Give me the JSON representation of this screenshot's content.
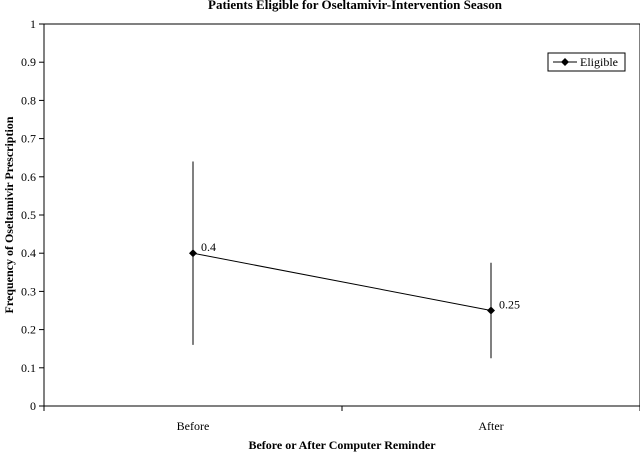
{
  "chart_data": {
    "type": "line",
    "title": "Patients Eligible for Oseltamivir-Intervention Season",
    "xlabel": "Before or After Computer Reminder",
    "ylabel": "Frequency of Oseltamivir Prescription",
    "categories": [
      "Before",
      "After"
    ],
    "ylim": [
      0,
      1
    ],
    "yticks": [
      "0",
      "0.1",
      "0.2",
      "0.3",
      "0.4",
      "0.5",
      "0.6",
      "0.7",
      "0.8",
      "0.9",
      "1"
    ],
    "grid": false,
    "legend_position": "top-right",
    "series": [
      {
        "name": "Eligible",
        "values": [
          0.4,
          0.25
        ],
        "error_low": [
          0.16,
          0.125
        ],
        "error_high": [
          0.64,
          0.375
        ],
        "data_labels": [
          "0.4",
          "0.25"
        ],
        "color": "#000000",
        "marker": "diamond"
      }
    ]
  }
}
